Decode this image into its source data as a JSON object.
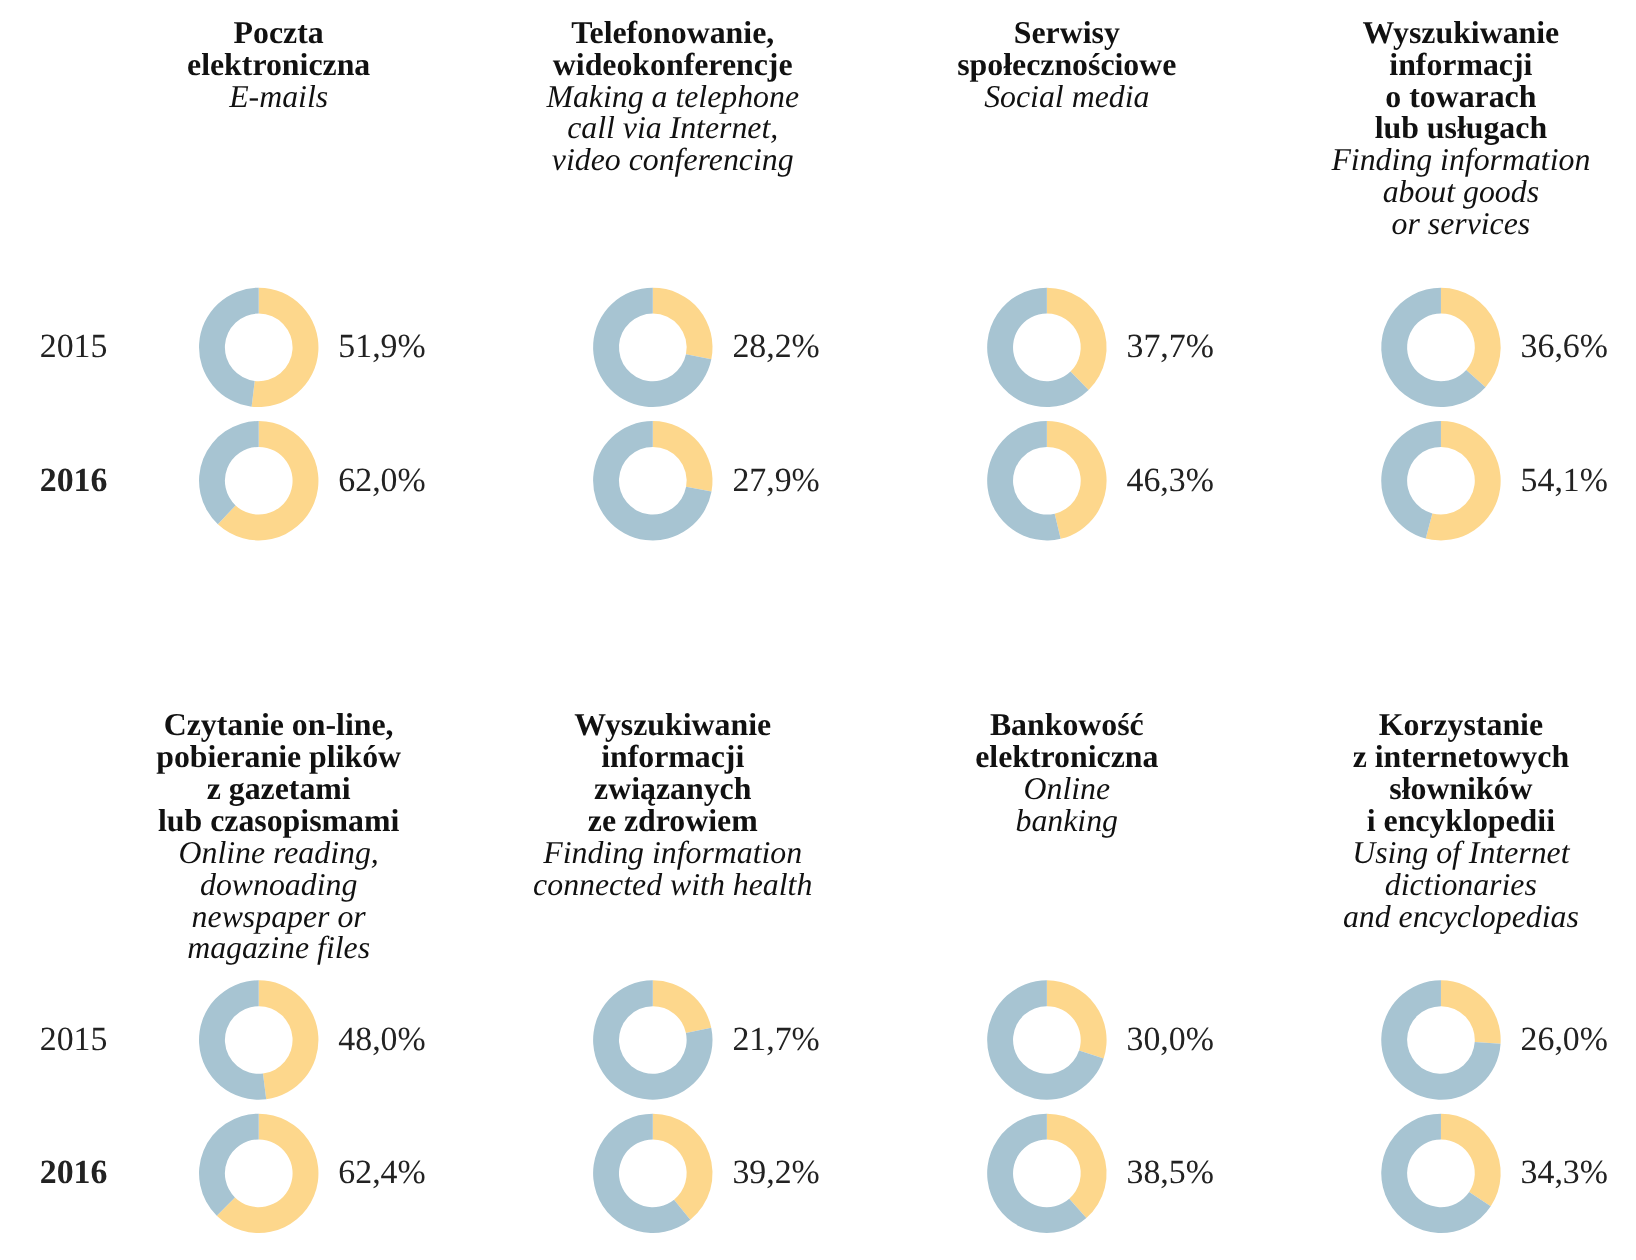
{
  "chart_data": [
    {
      "type": "donut",
      "title": "Poczta\nelektroniczna",
      "subtitle": "E-mails",
      "annotations": [
        "2015"
      ],
      "categories": [
        null,
        null
      ],
      "values": [
        51.9,
        48.1
      ],
      "colors": [
        "#fdd78c",
        "#a7c4d2"
      ],
      "value_labels": [
        "51,9%",
        null
      ]
    },
    {
      "type": "donut",
      "title": "Telefonowanie,\nwideokonferencje",
      "subtitle": "Making a telephone\ncall via Internet,\nvideo conferencing",
      "categories": [
        null,
        null
      ],
      "values": [
        28.2,
        71.8
      ],
      "colors": [
        "#fdd78c",
        "#a7c4d2"
      ],
      "value_labels": [
        "28,2%",
        null
      ]
    },
    {
      "type": "donut",
      "title": "Serwisy\nspołecznościowe",
      "subtitle": "Social media",
      "categories": [
        null,
        null
      ],
      "values": [
        37.7,
        62.3
      ],
      "colors": [
        "#fdd78c",
        "#a7c4d2"
      ],
      "value_labels": [
        "37,7%",
        null
      ]
    },
    {
      "type": "donut",
      "title": "Wyszukiwanie\ninformacji\no towarach\nlub usługach",
      "subtitle": "Finding information\nabout goods\nor services",
      "categories": [
        null,
        null
      ],
      "values": [
        36.6,
        63.4
      ],
      "colors": [
        "#fdd78c",
        "#a7c4d2"
      ],
      "value_labels": [
        "36,6%",
        null
      ]
    },
    {
      "type": "donut",
      "annotations": [
        "2016"
      ],
      "categories": [
        null,
        null
      ],
      "values": [
        62.0,
        38.0
      ],
      "colors": [
        "#fdd78c",
        "#a7c4d2"
      ],
      "value_labels": [
        "62,0%",
        null
      ]
    },
    {
      "type": "donut",
      "categories": [
        null,
        null
      ],
      "values": [
        27.9,
        72.1
      ],
      "colors": [
        "#fdd78c",
        "#a7c4d2"
      ],
      "value_labels": [
        "27,9%",
        null
      ]
    },
    {
      "type": "donut",
      "categories": [
        null,
        null
      ],
      "values": [
        46.3,
        53.7
      ],
      "colors": [
        "#fdd78c",
        "#a7c4d2"
      ],
      "value_labels": [
        "46,3%",
        null
      ]
    },
    {
      "type": "donut",
      "categories": [
        null,
        null
      ],
      "values": [
        54.1,
        45.9
      ],
      "colors": [
        "#fdd78c",
        "#a7c4d2"
      ],
      "value_labels": [
        "54,1%",
        null
      ]
    },
    {
      "type": "donut",
      "title": "Czytanie on-line,\npobieranie plików\nz gazetami\nlub czasopismami",
      "subtitle": "Online reading,\ndownoading\nnewspaper or\nmagazine files",
      "annotations": [
        "2015"
      ],
      "categories": [
        null,
        null
      ],
      "values": [
        48.0,
        52.0
      ],
      "colors": [
        "#fdd78c",
        "#a7c4d2"
      ],
      "value_labels": [
        "48,0%",
        null
      ]
    },
    {
      "type": "donut",
      "title": "Wyszukiwanie\ninformacji\nzwiązanych\nze zdrowiem",
      "subtitle": "Finding information\nconnected with health",
      "categories": [
        null,
        null
      ],
      "values": [
        21.7,
        78.3
      ],
      "colors": [
        "#fdd78c",
        "#a7c4d2"
      ],
      "value_labels": [
        "21,7%",
        null
      ]
    },
    {
      "type": "donut",
      "title": "Bankowość\nelektroniczna",
      "subtitle": "Online\nbanking",
      "categories": [
        null,
        null
      ],
      "values": [
        30.0,
        70.0
      ],
      "colors": [
        "#fdd78c",
        "#a7c4d2"
      ],
      "value_labels": [
        "30,0%",
        null
      ]
    },
    {
      "type": "donut",
      "title": "Korzystanie\nz internetowych\nsłowników\ni encyklopedii",
      "subtitle": "Using of Internet\ndictionaries\nand encyclopedias",
      "categories": [
        null,
        null
      ],
      "values": [
        26.0,
        74.0
      ],
      "colors": [
        "#fdd78c",
        "#a7c4d2"
      ],
      "value_labels": [
        "26,0%",
        null
      ]
    },
    {
      "type": "donut",
      "annotations": [
        "2016"
      ],
      "categories": [
        null,
        null
      ],
      "values": [
        62.4,
        37.6
      ],
      "colors": [
        "#fdd78c",
        "#a7c4d2"
      ],
      "value_labels": [
        "62,4%",
        null
      ]
    },
    {
      "type": "donut",
      "categories": [
        null,
        null
      ],
      "values": [
        39.2,
        60.8
      ],
      "colors": [
        "#fdd78c",
        "#a7c4d2"
      ],
      "value_labels": [
        "39,2%",
        null
      ]
    },
    {
      "type": "donut",
      "categories": [
        null,
        null
      ],
      "values": [
        38.5,
        61.5
      ],
      "colors": [
        "#fdd78c",
        "#a7c4d2"
      ],
      "value_labels": [
        "38,5%",
        null
      ]
    },
    {
      "type": "donut",
      "categories": [
        null,
        null
      ],
      "values": [
        34.3,
        65.7
      ],
      "colors": [
        "#fdd78c",
        "#a7c4d2"
      ],
      "value_labels": [
        "34,3%",
        null
      ]
    }
  ]
}
